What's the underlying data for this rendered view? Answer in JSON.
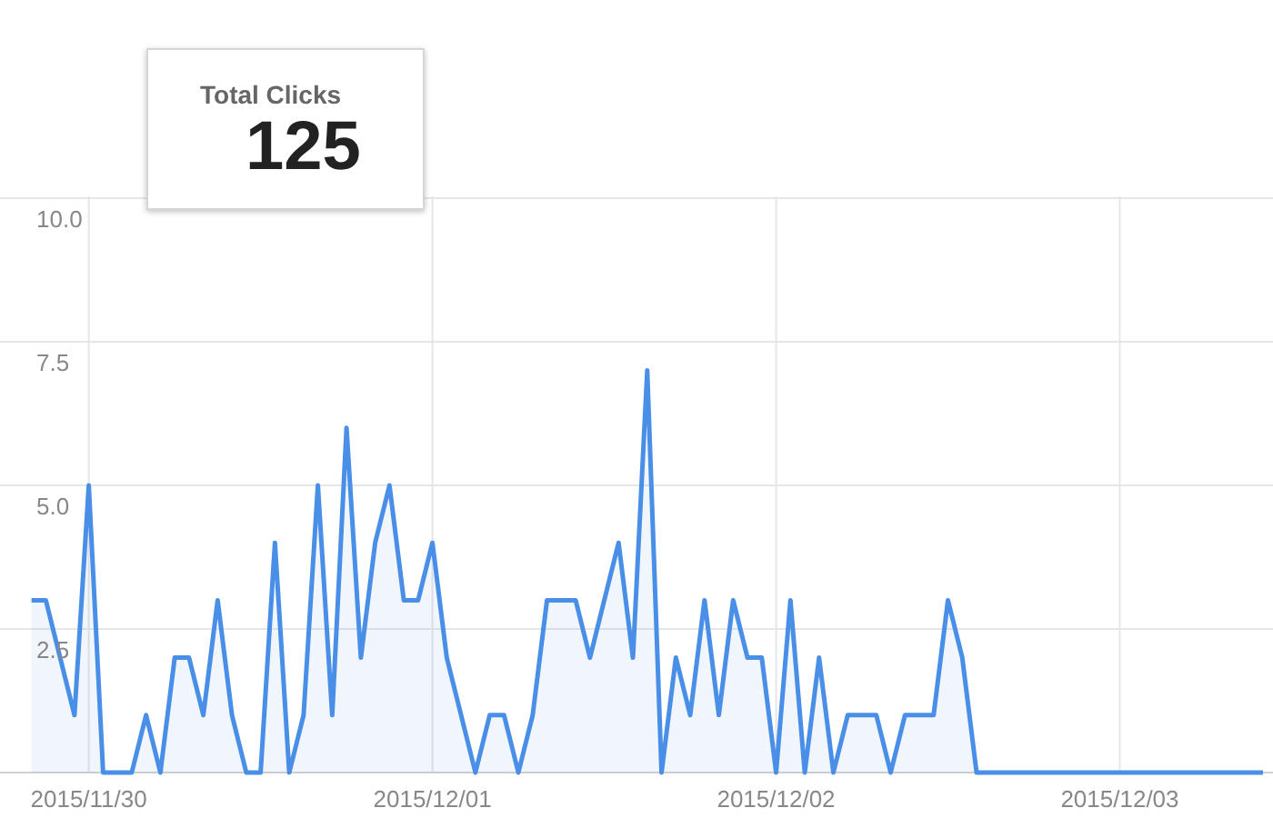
{
  "chart_data": {
    "type": "area",
    "title": "Total Clicks",
    "annotations": [
      "125"
    ],
    "x": [
      "2015-11-29T20:00",
      "2015-11-29T21:00",
      "2015-11-29T22:00",
      "2015-11-29T23:00",
      "2015-11-30T00:00",
      "2015-11-30T01:00",
      "2015-11-30T02:00",
      "2015-11-30T03:00",
      "2015-11-30T04:00",
      "2015-11-30T05:00",
      "2015-11-30T06:00",
      "2015-11-30T07:00",
      "2015-11-30T08:00",
      "2015-11-30T09:00",
      "2015-11-30T10:00",
      "2015-11-30T11:00",
      "2015-11-30T12:00",
      "2015-11-30T13:00",
      "2015-11-30T14:00",
      "2015-11-30T15:00",
      "2015-11-30T16:00",
      "2015-11-30T17:00",
      "2015-11-30T18:00",
      "2015-11-30T19:00",
      "2015-11-30T20:00",
      "2015-11-30T21:00",
      "2015-11-30T22:00",
      "2015-11-30T23:00",
      "2015-12-01T00:00",
      "2015-12-01T01:00",
      "2015-12-01T02:00",
      "2015-12-01T03:00",
      "2015-12-01T04:00",
      "2015-12-01T05:00",
      "2015-12-01T06:00",
      "2015-12-01T07:00",
      "2015-12-01T08:00",
      "2015-12-01T09:00",
      "2015-12-01T10:00",
      "2015-12-01T11:00",
      "2015-12-01T12:00",
      "2015-12-01T13:00",
      "2015-12-01T14:00",
      "2015-12-01T15:00",
      "2015-12-01T16:00",
      "2015-12-01T17:00",
      "2015-12-01T18:00",
      "2015-12-01T19:00",
      "2015-12-01T20:00",
      "2015-12-01T21:00",
      "2015-12-01T22:00",
      "2015-12-01T23:00",
      "2015-12-02T00:00",
      "2015-12-02T01:00",
      "2015-12-02T02:00",
      "2015-12-02T03:00",
      "2015-12-02T04:00",
      "2015-12-02T05:00",
      "2015-12-02T06:00",
      "2015-12-02T07:00",
      "2015-12-02T08:00",
      "2015-12-02T09:00",
      "2015-12-02T10:00",
      "2015-12-02T11:00",
      "2015-12-02T12:00",
      "2015-12-02T13:00",
      "2015-12-02T14:00",
      "2015-12-02T15:00",
      "2015-12-02T16:00",
      "2015-12-02T17:00",
      "2015-12-02T18:00",
      "2015-12-02T19:00",
      "2015-12-02T20:00",
      "2015-12-02T21:00",
      "2015-12-02T22:00",
      "2015-12-02T23:00",
      "2015-12-03T00:00",
      "2015-12-03T01:00",
      "2015-12-03T02:00",
      "2015-12-03T03:00",
      "2015-12-03T04:00",
      "2015-12-03T05:00",
      "2015-12-03T06:00",
      "2015-12-03T07:00",
      "2015-12-03T08:00",
      "2015-12-03T09:00",
      "2015-12-03T10:00"
    ],
    "series": [
      {
        "color": "#4a8fe7",
        "values": [
          3,
          3,
          2,
          1,
          5,
          0,
          0,
          0,
          1,
          0,
          2,
          2,
          1,
          3,
          1,
          0,
          0,
          4,
          0,
          1,
          5,
          1,
          6,
          2,
          4,
          5,
          3,
          3,
          4,
          2,
          1,
          0,
          1,
          1,
          0,
          1,
          3,
          3,
          3,
          2,
          3,
          4,
          2,
          7,
          0,
          2,
          1,
          3,
          1,
          3,
          2,
          2,
          0,
          3,
          0,
          2,
          0,
          1,
          1,
          1,
          0,
          1,
          1,
          1,
          3,
          2,
          0,
          0,
          0,
          0,
          0,
          0,
          0,
          0,
          0,
          0,
          0,
          0,
          0,
          0,
          0,
          0,
          0,
          0,
          0,
          0,
          0
        ]
      }
    ],
    "xlim": [
      "2015-11-29T17:48",
      "2015-12-03T10:42"
    ],
    "xticks": [
      {
        "value": "2015-11-30",
        "label": "2015/11/30"
      },
      {
        "value": "2015-12-01",
        "label": "2015/12/01"
      },
      {
        "value": "2015-12-02",
        "label": "2015/12/02"
      },
      {
        "value": "2015-12-03",
        "label": "2015/12/03"
      }
    ],
    "ylim": [
      0,
      10
    ],
    "yticks": [
      {
        "value": 0,
        "label": null
      },
      2.5,
      {
        "value": 5,
        "label": "5.0"
      },
      7.5,
      {
        "value": 10,
        "label": "10.0"
      }
    ],
    "grid": true,
    "marker": "none",
    "line_style": "solid"
  }
}
